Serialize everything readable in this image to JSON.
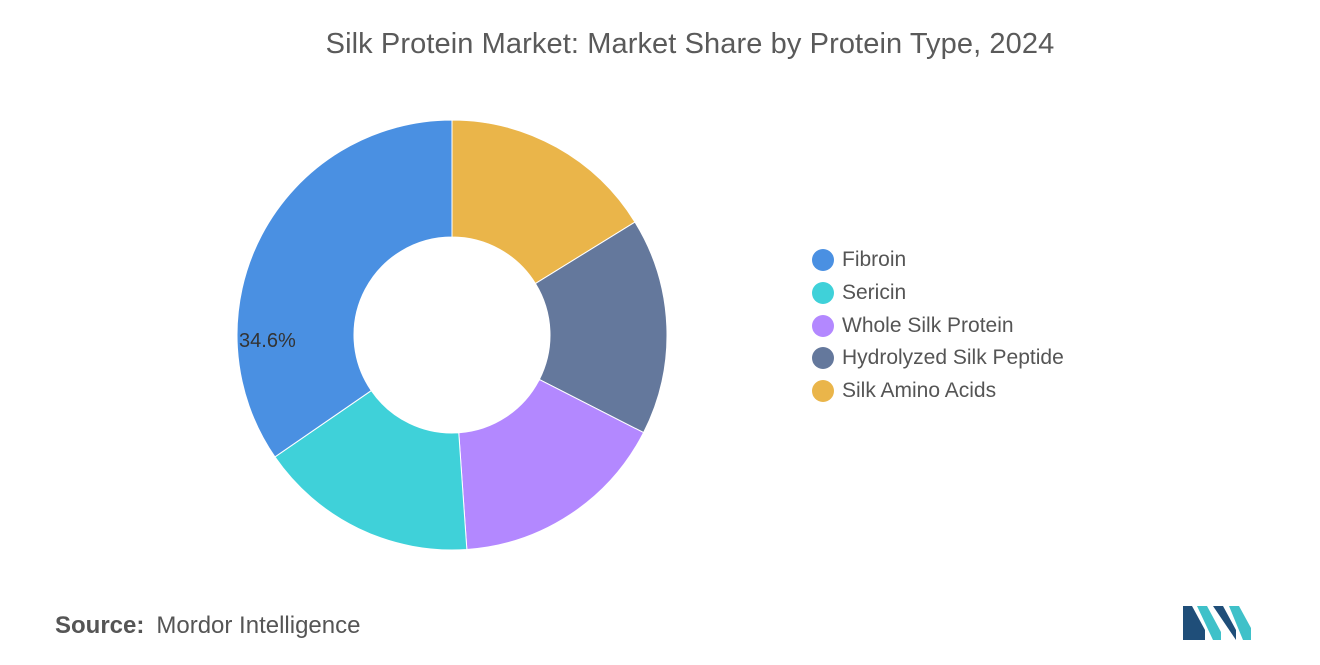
{
  "title": "Silk Protein Market: Market Share by Protein Type, 2024",
  "chart_data": {
    "type": "pie",
    "variant": "donut",
    "title": "Silk Protein Market: Market Share by Protein Type, 2024",
    "categories": [
      "Fibroin",
      "Sericin",
      "Whole Silk Protein",
      "Hydrolyzed Silk Peptide",
      "Silk Amino Acids"
    ],
    "values": [
      34.6,
      16.5,
      16.4,
      16.3,
      16.2
    ],
    "unit": "%",
    "colors": [
      "#4a90e2",
      "#3fd1d9",
      "#b388ff",
      "#64789c",
      "#eab54a"
    ],
    "data_labels": [
      {
        "category": "Fibroin",
        "text": "34.6%"
      }
    ],
    "legend_position": "right"
  },
  "source": {
    "label": "Source:",
    "value": "Mordor Intelligence"
  },
  "logo": {
    "icon": "mordor-intelligence-logo",
    "colors": [
      "#1f4e79",
      "#3fc1c9"
    ]
  }
}
